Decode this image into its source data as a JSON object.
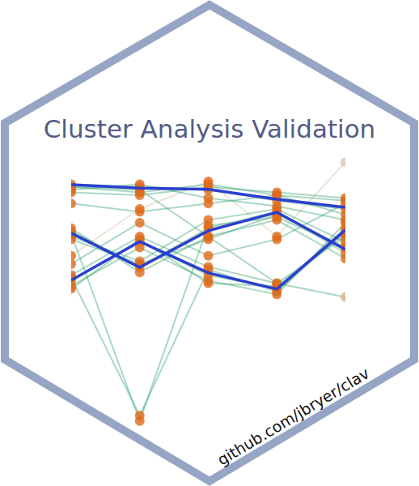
{
  "chart_data": {
    "type": "line",
    "title": "Cluster Analysis Validation",
    "subtitle": "github.com/jbryer/clav",
    "categories": [
      null,
      null,
      null,
      null,
      null
    ],
    "ylim": [
      0,
      10
    ],
    "grid": false,
    "tick_labels": false,
    "series": [
      {
        "color": "#2b3fd0",
        "marker": "none",
        "values": [
          8.88,
          8.76,
          8.71,
          8.35,
          8.06
        ]
      },
      {
        "color": "#2b3fd0",
        "marker": "none",
        "values": [
          7.12,
          5.88,
          7.21,
          7.88,
          6.53
        ]
      },
      {
        "color": "#2b3fd0",
        "marker": "none",
        "values": [
          5.41,
          6.82,
          5.68,
          5.09,
          7.24
        ]
      },
      {
        "color": "#2a9d6a",
        "marker": "circle",
        "colors": [
          "#e06a1b",
          "#e06a1b",
          "#e06a1b",
          "#e06a1b",
          "#e06a1b"
        ],
        "values": [
          8.9,
          8.8,
          8.7,
          8.3,
          8.0
        ]
      },
      {
        "color": "#2a9d6a",
        "marker": "circle",
        "colors": [
          "#e06a1b",
          "#e06a1b",
          "#e06a1b",
          "#e06a1b",
          "#e06a1b"
        ],
        "values": [
          8.8,
          8.6,
          8.9,
          8.5,
          8.3
        ]
      },
      {
        "color": "#2a9d6a",
        "marker": "circle",
        "colors": [
          "#e06a1b",
          "#e06a1b",
          "#e06a1b",
          "#e06a1b",
          "#e06a1b"
        ],
        "values": [
          8.7,
          8.9,
          8.4,
          8.1,
          7.6
        ]
      },
      {
        "color": "#2a9d6a",
        "marker": "circle",
        "colors": [
          "#e06a1b",
          "#e06a1b",
          "#e06a1b",
          "#e06a1b",
          "#e06a1b"
        ],
        "values": [
          8.6,
          8.5,
          8.8,
          8.6,
          8.4
        ]
      },
      {
        "color": "#2a9d6a",
        "marker": "circle",
        "colors": [
          "#e06a1b",
          "#e06a1b",
          "#e06a1b",
          "#e06a1b",
          "#e06a1b"
        ],
        "values": [
          7.2,
          5.9,
          7.3,
          7.9,
          6.4
        ]
      },
      {
        "color": "#2a9d6a",
        "marker": "circle",
        "colors": [
          "#e06a1b",
          "#e06a1b",
          "#e06a1b",
          "#e06a1b",
          "#e06a1b"
        ],
        "values": [
          7.0,
          6.1,
          7.6,
          8.0,
          6.8
        ]
      },
      {
        "color": "#2a9d6a",
        "marker": "circle",
        "colors": [
          "#e06a1b",
          "#e06a1b",
          "#e06a1b",
          "#e06a1b",
          "#e06a1b"
        ],
        "values": [
          7.3,
          5.7,
          7.0,
          7.6,
          6.2
        ]
      },
      {
        "color": "#2a9d6a",
        "marker": "circle",
        "colors": [
          "#e06a1b",
          "#e06a1b",
          "#e06a1b",
          "#e06a1b",
          "#e06a1b"
        ],
        "values": [
          6.9,
          6.0,
          6.9,
          7.8,
          6.6
        ]
      },
      {
        "color": "#2a9d6a",
        "marker": "circle",
        "colors": [
          "#e06a1b",
          "#e06a1b",
          "#e06a1b",
          "#e06a1b",
          "#e06a1b"
        ],
        "values": [
          5.4,
          6.8,
          5.6,
          5.1,
          7.3
        ]
      },
      {
        "color": "#2a9d6a",
        "marker": "circle",
        "colors": [
          "#e06a1b",
          "#e06a1b",
          "#e06a1b",
          "#e06a1b",
          "#e06a1b"
        ],
        "values": [
          5.6,
          7.0,
          5.9,
          5.3,
          7.0
        ]
      },
      {
        "color": "#2a9d6a",
        "marker": "circle",
        "colors": [
          "#e06a1b",
          "#e06a1b",
          "#e06a1b",
          "#e06a1b",
          "#e06a1b"
        ],
        "values": [
          5.2,
          6.6,
          5.4,
          4.9,
          7.5
        ]
      },
      {
        "color": "#2a9d6a",
        "marker": "circle",
        "colors": [
          "#e06a1b",
          "#e06a1b",
          "#e06a1b",
          "#e06a1b",
          "#e06a1b"
        ],
        "values": [
          5.1,
          6.9,
          5.3,
          5.2,
          7.1
        ]
      },
      {
        "color": "#2a9d6a",
        "marker": "circle",
        "colors": [
          "#e06a1b",
          "#e06a1b",
          "#e06a1b",
          "#e06a1b",
          "#e06a1b"
        ],
        "values": [
          5.5,
          0.5,
          5.8,
          5.0,
          7.2
        ]
      },
      {
        "color": "#2a9d6a",
        "marker": "circle",
        "colors": [
          "#e06a1b",
          "#e06a1b",
          "#e06a1b",
          "#e06a1b",
          "#e06a1b"
        ],
        "values": [
          7.1,
          0.3,
          7.4,
          7.7,
          6.6
        ]
      },
      {
        "color": "#2a9d6a",
        "marker": "circle",
        "colors": [
          "#e06a1b",
          "#e06a1b",
          "#e06a1b",
          "#e06a1b",
          "#d9b08c"
        ],
        "values": [
          8.8,
          8.7,
          7.0,
          5.3,
          4.8
        ]
      },
      {
        "color": "#c9c2a0",
        "marker": "circle",
        "colors": [
          "#e06a1b",
          "#e06a1b",
          "#e06a1b",
          "#e06a1b",
          "#d9c8b0"
        ],
        "values": [
          6.3,
          8.0,
          9.0,
          7.0,
          9.7
        ]
      },
      {
        "color": "#2a9d6a",
        "marker": "circle",
        "colors": [
          "#e06a1b",
          "#e06a1b",
          "#e06a1b",
          "#e06a1b",
          "#e06a1b"
        ],
        "values": [
          6.0,
          7.5,
          6.3,
          6.9,
          8.2
        ]
      },
      {
        "color": "#2a9d6a",
        "marker": "circle",
        "colors": [
          "#e06a1b",
          "#e06a1b",
          "#e06a1b",
          "#e06a1b",
          "#e06a1b"
        ],
        "values": [
          8.2,
          7.9,
          8.2,
          8.5,
          7.8
        ]
      }
    ]
  }
}
